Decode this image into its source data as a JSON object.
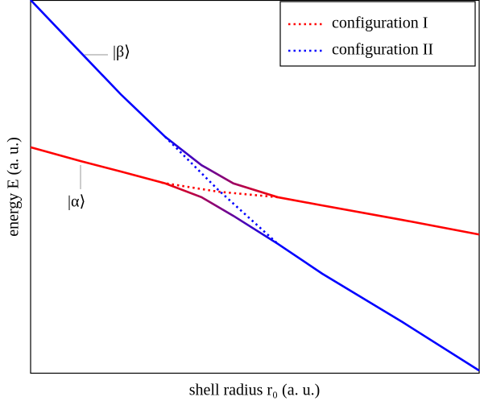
{
  "chart_data": {
    "type": "line",
    "xlabel": "shell radius r₀ (a. u.)",
    "ylabel": "energy E (a. u.)",
    "xlim": [
      0,
      10
    ],
    "ylim": [
      0,
      10
    ],
    "legend": "upper right",
    "series": [
      {
        "name": "configuration I",
        "color": "#ff0000",
        "x": [
          2.92,
          4.17,
          5.51
        ],
        "values": [
          5.1,
          4.86,
          4.71
        ]
      },
      {
        "name": "configuration II",
        "color": "#0000ff",
        "x": [
          3.0,
          4.17,
          5.51
        ],
        "values": [
          6.33,
          4.92,
          3.46
        ]
      }
    ],
    "curves": [
      {
        "colors": [
          "#0000ff",
          "#ff0000"
        ],
        "x": [
          0,
          1.11,
          2.01,
          3.0,
          3.81,
          4.52,
          5.51,
          6.5,
          8.29,
          10
        ],
        "values": [
          10,
          8.6,
          7.47,
          6.33,
          5.57,
          5.08,
          4.71,
          4.49,
          4.1,
          3.71
        ]
      },
      {
        "colors": [
          "#ff0000",
          "#0000ff"
        ],
        "x": [
          0,
          1.11,
          2.01,
          3.0,
          3.81,
          4.52,
          5.51,
          6.5,
          8.29,
          10
        ],
        "values": [
          6.05,
          5.68,
          5.4,
          5.08,
          4.71,
          4.21,
          3.46,
          2.66,
          1.36,
          0.06
        ]
      }
    ],
    "annotations": [
      "|β⟩",
      "|α⟩"
    ]
  }
}
